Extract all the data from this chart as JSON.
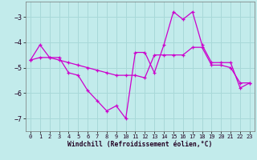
{
  "xlabel": "Windchill (Refroidissement éolien,°C)",
  "background_color": "#c2ebeb",
  "grid_color": "#a8d8d8",
  "line_color": "#cc00cc",
  "x_hours": [
    0,
    1,
    2,
    3,
    4,
    5,
    6,
    7,
    8,
    9,
    10,
    11,
    12,
    13,
    14,
    15,
    16,
    17,
    18,
    19,
    20,
    21,
    22,
    23
  ],
  "line1_y": [
    -4.7,
    -4.1,
    -4.6,
    -4.6,
    -5.2,
    -5.3,
    -5.9,
    -6.3,
    -6.7,
    -6.5,
    -7.0,
    -4.4,
    -4.4,
    -5.2,
    -4.1,
    -2.8,
    -3.1,
    -2.8,
    -4.1,
    -4.8,
    -4.8,
    -4.8,
    -5.8,
    -5.6
  ],
  "line2_y": [
    -4.7,
    -4.6,
    -4.6,
    -4.7,
    -4.8,
    -4.9,
    -5.0,
    -5.1,
    -5.2,
    -5.3,
    -5.3,
    -5.3,
    -5.4,
    -4.5,
    -4.5,
    -4.5,
    -4.5,
    -4.2,
    -4.2,
    -4.9,
    -4.9,
    -5.0,
    -5.6,
    -5.6
  ],
  "xlim": [
    -0.5,
    23.5
  ],
  "ylim": [
    -7.5,
    -2.4
  ],
  "yticks": [
    -7,
    -6,
    -5,
    -4,
    -3
  ],
  "xticks": [
    0,
    1,
    2,
    3,
    4,
    5,
    6,
    7,
    8,
    9,
    10,
    11,
    12,
    13,
    14,
    15,
    16,
    17,
    18,
    19,
    20,
    21,
    22,
    23
  ]
}
